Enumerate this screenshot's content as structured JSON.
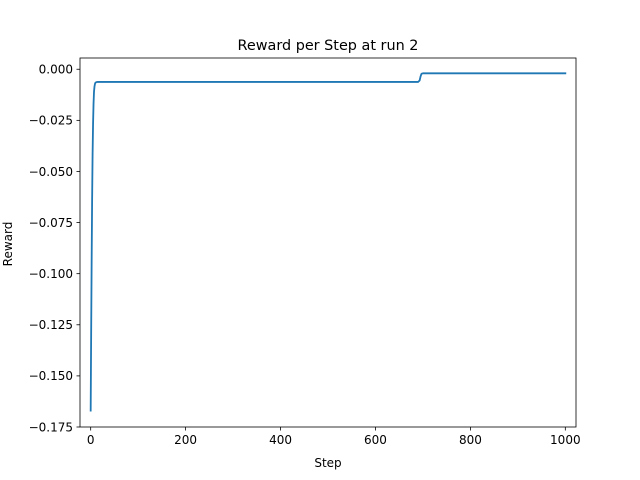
{
  "chart_data": {
    "type": "line",
    "title": "Reward per Step at run 2",
    "xlabel": "Step",
    "ylabel": "Reward",
    "xlim": [
      -22.5,
      1022.5
    ],
    "ylim": [
      -0.175,
      0.0055
    ],
    "xticks": [
      0,
      200,
      400,
      600,
      800,
      1000
    ],
    "xtick_labels": [
      "0",
      "200",
      "400",
      "600",
      "800",
      "1000"
    ],
    "yticks": [
      0.0,
      -0.025,
      -0.05,
      -0.075,
      -0.1,
      -0.125,
      -0.15,
      -0.175
    ],
    "ytick_labels": [
      "0.000",
      "−0.025",
      "−0.050",
      "−0.075",
      "−0.100",
      "−0.125",
      "−0.150",
      "−0.175"
    ],
    "grid": false,
    "series": [
      {
        "color": "#1f77b4",
        "x": [
          0,
          1,
          2,
          3,
          4,
          5,
          6,
          7,
          8,
          9,
          10,
          12,
          15,
          20,
          50,
          100,
          200,
          300,
          400,
          500,
          600,
          690,
          693,
          695,
          697,
          700,
          800,
          900,
          1000
        ],
        "y": [
          -0.167,
          -0.13,
          -0.095,
          -0.065,
          -0.042,
          -0.027,
          -0.017,
          -0.011,
          -0.0085,
          -0.0072,
          -0.0066,
          -0.0063,
          -0.0062,
          -0.0062,
          -0.0062,
          -0.0062,
          -0.0062,
          -0.0062,
          -0.0062,
          -0.0062,
          -0.0062,
          -0.0062,
          -0.0055,
          -0.0035,
          -0.0022,
          -0.002,
          -0.002,
          -0.002,
          -0.002
        ]
      }
    ]
  }
}
